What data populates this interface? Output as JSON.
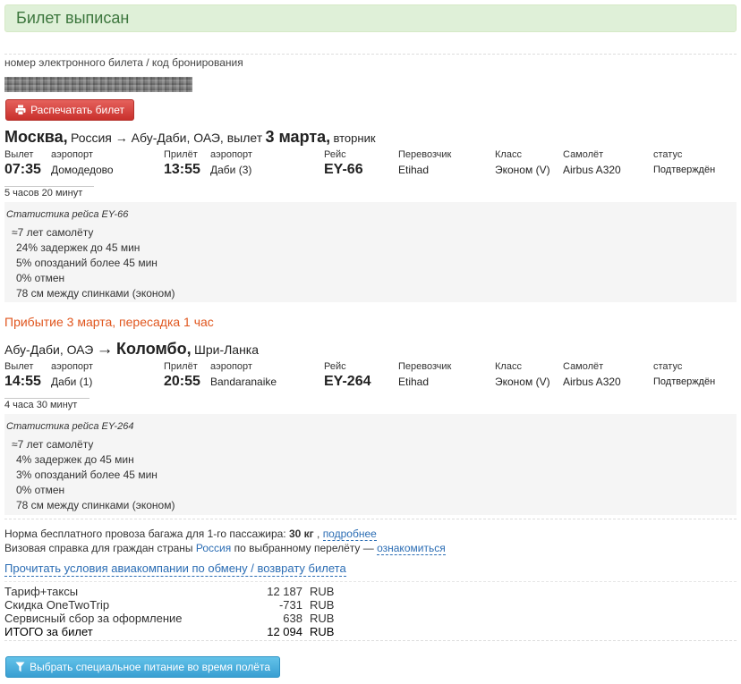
{
  "status_banner": {
    "text": "Билет выписан"
  },
  "booking": {
    "code_label": "номер электронного билета / код бронирования",
    "print_button": "Распечатать билет"
  },
  "columns": {
    "departure": "Вылет",
    "airport": "аэропорт",
    "arrival": "Прилёт",
    "flight": "Рейс",
    "carrier": "Перевозчик",
    "class": "Класс",
    "aircraft": "Самолёт",
    "status": "статус"
  },
  "segments": [
    {
      "route": {
        "from_city": "Москва,",
        "middle": "Россия → Абу-Даби, ОАЭ, вылет",
        "date": "3 марта,",
        "weekday": "вторник"
      },
      "dep_time": "07:35",
      "dep_airport": "Домодедово",
      "arr_time": "13:55",
      "arr_airport": "Даби (3)",
      "flight": "EY-66",
      "carrier": "Etihad",
      "class": "Эконом (V)",
      "aircraft": "Airbus A320",
      "status": "Подтверждён",
      "duration": "5 часов 20 минут",
      "stats": {
        "title": "Статистика рейса EY-66",
        "aircraft_age": "≈7 лет самолёту",
        "items": [
          "24% задержек до 45 мин",
          "5% опозданий более 45 мин",
          "0% отмен",
          "78 см между спинками (эконом)"
        ]
      }
    },
    {
      "route": {
        "from": "Абу-Даби, ОАЭ",
        "arrow": "→",
        "to_city": "Коломбо,",
        "to_country": "Шри-Ланка"
      },
      "dep_time": "14:55",
      "dep_airport": "Даби (1)",
      "arr_time": "20:55",
      "arr_airport": "Bandaranaike",
      "flight": "EY-264",
      "carrier": "Etihad",
      "class": "Эконом (V)",
      "aircraft": "Airbus A320",
      "status": "Подтверждён",
      "duration": "4 часа 30 минут",
      "stats": {
        "title": "Статистика рейса EY-264",
        "aircraft_age": "≈7 лет самолёту",
        "items": [
          "4% задержек до 45 мин",
          "3% опозданий более 45 мин",
          "0% отмен",
          "78 см между спинками (эконом)"
        ]
      }
    }
  ],
  "transfer": "Прибытие 3 марта, пересадка 1 час",
  "baggage": {
    "text": "Норма бесплатного провоза багажа для 1-го пассажира:",
    "allowance": "30 кг",
    "sep": ",",
    "link": "подробнее"
  },
  "visa": {
    "text": "Визовая справка для граждан страны",
    "country": "Россия",
    "text2": "по выбранному перелёту —",
    "link": "ознакомиться"
  },
  "rules_link": "Прочитать условия авиакомпании по обмену / возврату билета",
  "prices": {
    "rows": [
      {
        "label": "Тариф+таксы",
        "amount": "12 187",
        "currency": "RUB"
      },
      {
        "label": "Скидка OneTwoTrip",
        "amount": "-731",
        "currency": "RUB"
      },
      {
        "label": "Сервисный сбор за оформление",
        "amount": "638",
        "currency": "RUB"
      }
    ],
    "total": {
      "label": "ИТОГО за билет",
      "amount": "12 094",
      "currency": "RUB"
    }
  },
  "meal_button": "Выбрать специальное питание во время полёта",
  "icons": {
    "print_button": "printer-icon",
    "meal_button": "filter-icon"
  },
  "colors": {
    "banner_bg": "#dff0d8",
    "banner_text": "#3c763d",
    "transfer_text": "#e0561e",
    "link": "#2b6db4",
    "print_button": "#d9534f",
    "meal_button": "#46a8d8",
    "stats_bg": "#f5f5f5"
  }
}
